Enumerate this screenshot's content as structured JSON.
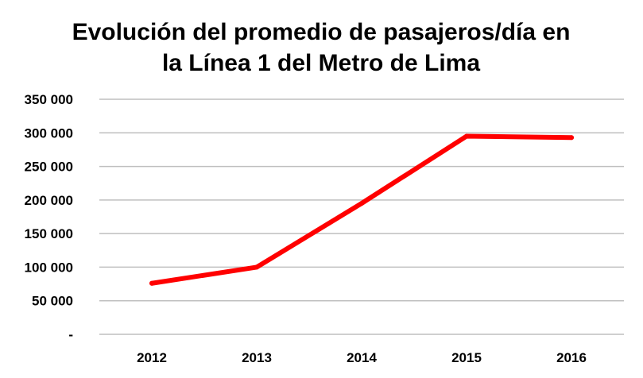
{
  "chart_data": {
    "type": "line",
    "title": "Evolución del promedio de pasajeros/día en la Línea 1 del Metro de Lima",
    "title_lines": [
      "Evolución del promedio de pasajeros/día en",
      "la Línea 1 del Metro de Lima"
    ],
    "xlabel": "",
    "ylabel": "",
    "categories": [
      "2012",
      "2013",
      "2014",
      "2015",
      "2016"
    ],
    "series": [
      {
        "values": [
          76000,
          100000,
          195000,
          295000,
          293000
        ],
        "color": "#ff0000"
      }
    ],
    "ylim": [
      0,
      350000
    ],
    "y_ticks": [
      0,
      50000,
      100000,
      150000,
      200000,
      250000,
      300000,
      350000
    ],
    "y_tick_labels": [
      "-",
      "50 000",
      "100 000",
      "150 000",
      "200 000",
      "250 000",
      "300 000",
      "350 000"
    ],
    "grid": true,
    "legend": "none",
    "gridline_color": "#bfbfbf"
  }
}
